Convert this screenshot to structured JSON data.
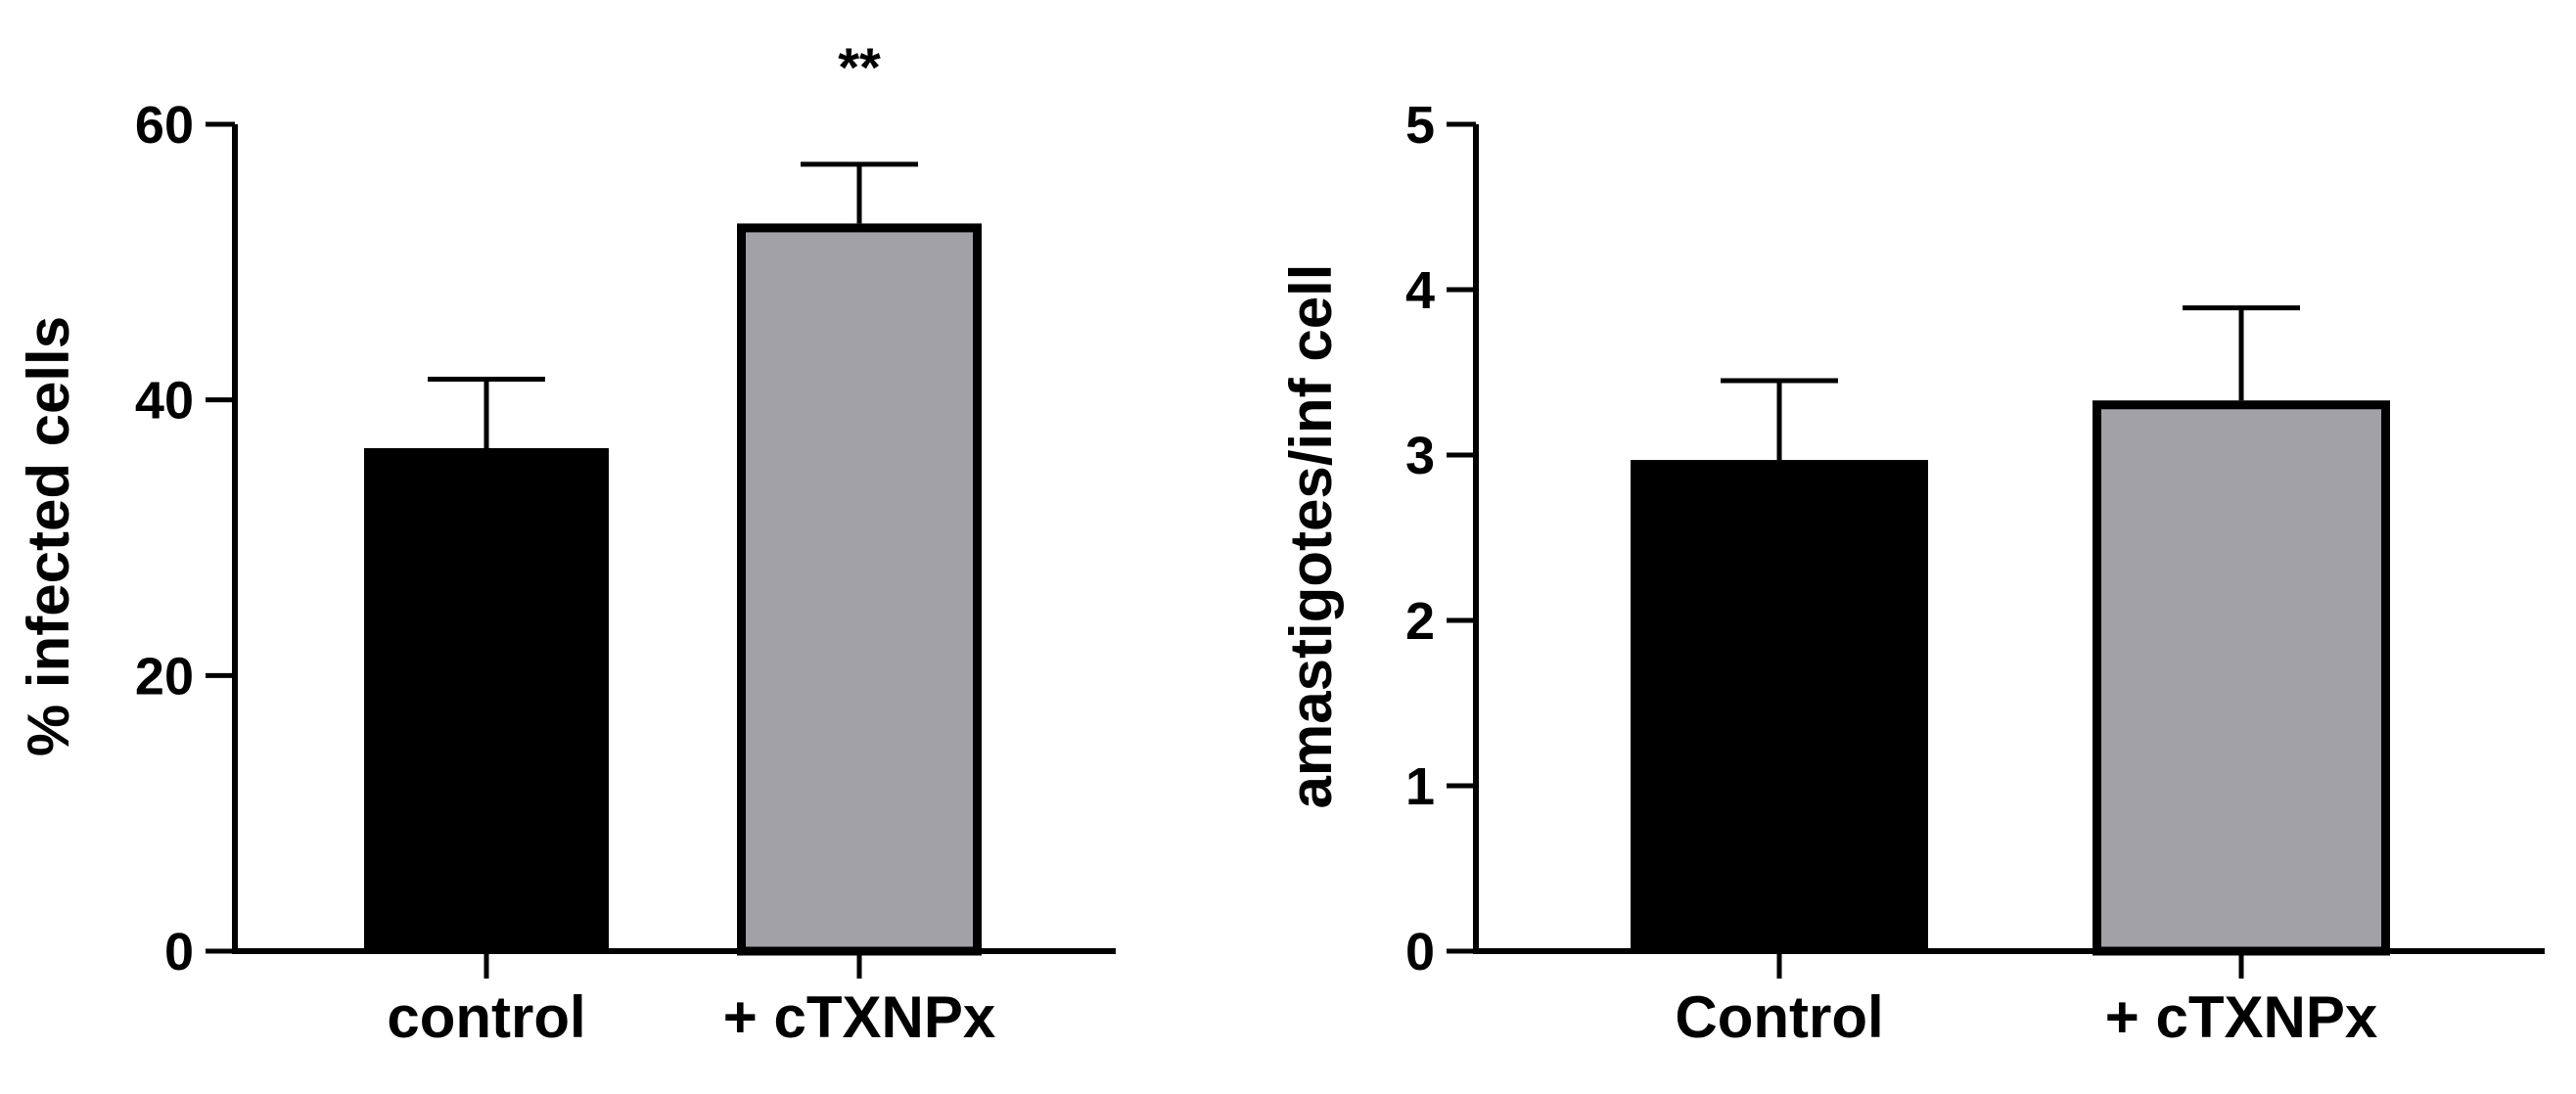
{
  "chart_data": [
    {
      "type": "bar",
      "categories": [
        "control",
        "+ cTXNPx"
      ],
      "values": [
        36.5,
        52.8
      ],
      "errors": [
        5.0,
        4.3
      ],
      "bar_colors": [
        "#000000",
        "#a2a1a6"
      ],
      "ylabel": "% infected cells",
      "ylim": [
        0,
        60
      ],
      "yticks": [
        "0",
        "20",
        "40",
        "60"
      ],
      "annotations": [
        {
          "category": "+ cTXNPx",
          "text": "**"
        }
      ],
      "grid": false
    },
    {
      "type": "bar",
      "categories": [
        "Control",
        "+ cTXNPx"
      ],
      "values": [
        2.97,
        3.33
      ],
      "errors": [
        0.48,
        0.56
      ],
      "bar_colors": [
        "#000000",
        "#a2a1a6"
      ],
      "ylabel": "amastigotes/inf cell",
      "ylim": [
        0,
        5
      ],
      "yticks": [
        "0",
        "1",
        "2",
        "3",
        "4",
        "5"
      ],
      "annotations": [],
      "grid": false
    }
  ]
}
